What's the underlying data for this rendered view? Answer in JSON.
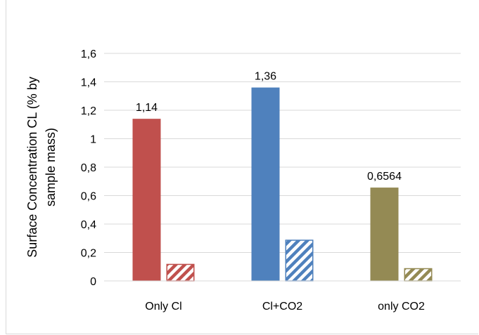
{
  "chart_data": {
    "type": "bar",
    "title": "",
    "xlabel": "",
    "ylabel_lines": [
      "Surface Concentration CL (% by",
      "sample mass)"
    ],
    "categories": [
      "Only Cl",
      "Cl+CO2",
      "only CO2"
    ],
    "ylim": [
      0,
      1.6
    ],
    "yticks": [
      0,
      0.2,
      0.4,
      0.6,
      0.8,
      1,
      1.2,
      1.4,
      1.6
    ],
    "ytick_labels": [
      "0",
      "0,2",
      "0,4",
      "0,6",
      "0,8",
      "1",
      "1,2",
      "1,4",
      "1,6"
    ],
    "grid": true,
    "legend": "none",
    "series": [
      {
        "values": [
          1.14,
          1.36,
          0.6564
        ],
        "data_labels": [
          "1,14",
          "1,36",
          "0,6564"
        ],
        "fill": "solid"
      },
      {
        "values": [
          0.12,
          0.29,
          0.09
        ],
        "fill": "hatched"
      }
    ],
    "colors": [
      "#c0504d",
      "#4f81bd",
      "#948a54"
    ]
  }
}
